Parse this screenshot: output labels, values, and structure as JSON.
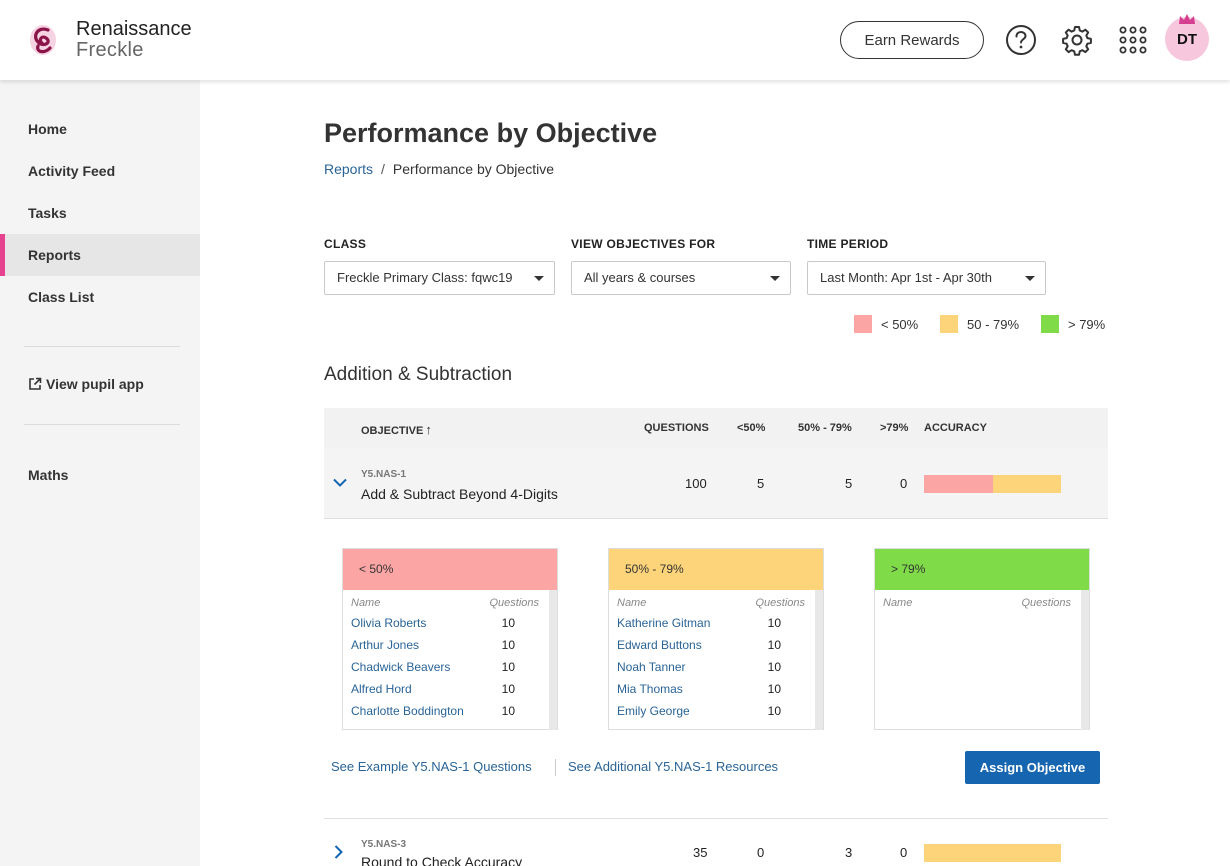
{
  "header": {
    "brand": "Renaissance",
    "product": "Freckle",
    "earn_rewards": "Earn Rewards",
    "avatar_initials": "DT",
    "colors": {
      "avatar_bg": "#f6c7dd",
      "crown": "#d63f8f",
      "logo": "#8a1447"
    }
  },
  "sidebar": {
    "items": [
      {
        "label": "Home"
      },
      {
        "label": "Activity Feed"
      },
      {
        "label": "Tasks"
      },
      {
        "label": "Reports"
      },
      {
        "label": "Class List"
      }
    ],
    "pupil_app": "View pupil app",
    "subject": "Maths",
    "colors": {
      "active_accent": "#e6428f"
    }
  },
  "page": {
    "title": "Performance by Objective",
    "breadcrumb": {
      "root": "Reports",
      "separator": "/",
      "current": "Performance by Objective"
    }
  },
  "filters": {
    "class": {
      "label": "CLASS",
      "value": "Freckle Primary Class: fqwc19"
    },
    "objectives": {
      "label": "VIEW OBJECTIVES FOR",
      "value": "All years & courses"
    },
    "period": {
      "label": "TIME PERIOD",
      "value": "Last Month: Apr 1st - Apr 30th"
    }
  },
  "legend": [
    {
      "label": "< 50%",
      "color": "#fca5a5"
    },
    {
      "label": "50 - 79%",
      "color": "#fdd47a"
    },
    {
      "label": "> 79%",
      "color": "#7fdc48"
    }
  ],
  "section": {
    "title": "Addition & Subtraction",
    "columns": {
      "objective": "OBJECTIVE",
      "objective_sort": "↑",
      "questions": "QUESTIONS",
      "lt50": "<50%",
      "mid": "50% - 79%",
      "gt79": ">79%",
      "accuracy": "ACCURACY"
    },
    "rows": [
      {
        "code": "Y5.NAS-1",
        "name": "Add & Subtract Beyond 4-Digits",
        "questions": "100",
        "lt50": "5",
        "mid": "5",
        "gt79": "0",
        "accuracy_split": [
          0.5,
          0.5,
          0
        ]
      },
      {
        "code": "Y5.NAS-3",
        "name": "Round to Check Accuracy",
        "questions": "35",
        "lt50": "0",
        "mid": "3",
        "gt79": "0",
        "accuracy_split": [
          0,
          1,
          0
        ]
      }
    ]
  },
  "breakdown": {
    "name_header": "Name",
    "questions_header": "Questions",
    "groups": [
      {
        "title": "< 50%",
        "color": "#fca5a5",
        "students": [
          {
            "name": "Olivia Roberts",
            "questions": "10"
          },
          {
            "name": "Arthur Jones",
            "questions": "10"
          },
          {
            "name": "Chadwick Beavers",
            "questions": "10"
          },
          {
            "name": "Alfred Hord",
            "questions": "10"
          },
          {
            "name": "Charlotte Boddington",
            "questions": "10"
          }
        ]
      },
      {
        "title": "50% - 79%",
        "color": "#fdd47a",
        "students": [
          {
            "name": "Katherine Gitman",
            "questions": "10"
          },
          {
            "name": "Edward Buttons",
            "questions": "10"
          },
          {
            "name": "Noah Tanner",
            "questions": "10"
          },
          {
            "name": "Mia Thomas",
            "questions": "10"
          },
          {
            "name": "Emily George",
            "questions": "10"
          }
        ]
      },
      {
        "title": "> 79%",
        "color": "#7fdc48",
        "students": []
      }
    ],
    "see_example": "See Example Y5.NAS-1 Questions",
    "see_additional": "See Additional Y5.NAS-1 Resources",
    "assign": "Assign Objective"
  }
}
